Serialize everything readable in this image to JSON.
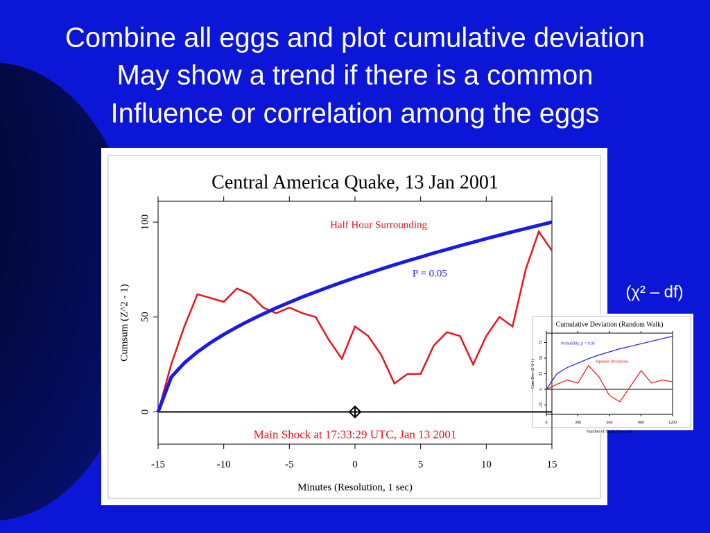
{
  "slide": {
    "title_lines": [
      "Combine all eggs and plot cumulative deviation",
      "May show a trend if there is a common",
      "Influence or correlation among the eggs"
    ],
    "note": "(χ² – df)"
  },
  "chart_data": [
    {
      "type": "line",
      "title": "Central America Quake, 13 Jan 2001",
      "x_label": "Minutes (Resolution, 1 sec)",
      "y_label": "Cumsum (Z^2 - 1)",
      "x": [
        -15,
        -14,
        -13,
        -12,
        -11,
        -10,
        -9,
        -8,
        -7,
        -6,
        -5,
        -4,
        -3,
        -2,
        -1,
        0,
        1,
        2,
        3,
        4,
        5,
        6,
        7,
        8,
        9,
        10,
        11,
        12,
        13,
        14,
        15
      ],
      "series": [
        {
          "name": "Half Hour Surrounding",
          "color": "#e8141c",
          "values": [
            0,
            25,
            45,
            62,
            60,
            58,
            65,
            62,
            55,
            52,
            55,
            52,
            50,
            38,
            28,
            45,
            40,
            30,
            15,
            20,
            20,
            35,
            42,
            40,
            25,
            40,
            50,
            45,
            75,
            95,
            85
          ]
        },
        {
          "name": "P = 0.05",
          "color": "#1a1ae6",
          "values": [
            0,
            18.3,
            25.8,
            31.6,
            36.5,
            40.8,
            44.7,
            48.3,
            51.6,
            54.8,
            57.7,
            60.6,
            63.2,
            65.8,
            68.3,
            70.7,
            73.0,
            75.3,
            77.5,
            79.6,
            81.6,
            83.7,
            85.6,
            87.6,
            89.4,
            91.3,
            93.1,
            94.9,
            96.6,
            98.3,
            100
          ]
        }
      ],
      "annotations": [
        {
          "text": "Main Shock at 17:33:29 UTC, Jan 13 2001",
          "x": 0,
          "y": 0
        }
      ],
      "xlim": [
        -15,
        15
      ],
      "ylim": [
        -17,
        111
      ],
      "xticks": [
        -15,
        -10,
        -5,
        0,
        5,
        10,
        15
      ],
      "yticks": [
        0,
        50,
        100
      ]
    },
    {
      "type": "line",
      "title": "Cumulative Deviation (Random Walk)",
      "x_label": "Number of Trials (Seconds)",
      "y_label": "Cum Dev (Z^2-1)",
      "x": [
        0,
        100,
        200,
        300,
        400,
        500,
        600,
        700,
        800,
        900,
        1000,
        1100,
        1200
      ],
      "series": [
        {
          "name": "Probability, p = 0.05",
          "color": "#1a1ae6",
          "values": [
            0,
            25,
            35,
            42,
            49,
            55,
            60,
            65,
            69,
            73,
            77,
            81,
            85
          ]
        },
        {
          "name": "Squared Deviations",
          "color": "#e8141c",
          "values": [
            0,
            8,
            15,
            10,
            38,
            20,
            -10,
            -20,
            5,
            30,
            10,
            15,
            12
          ]
        }
      ],
      "xlim": [
        0,
        1200
      ],
      "ylim": [
        -40,
        90
      ],
      "xticks": [
        0,
        300,
        600,
        900,
        1200
      ],
      "yticks": [
        -25,
        0,
        25,
        50,
        75
      ]
    }
  ]
}
